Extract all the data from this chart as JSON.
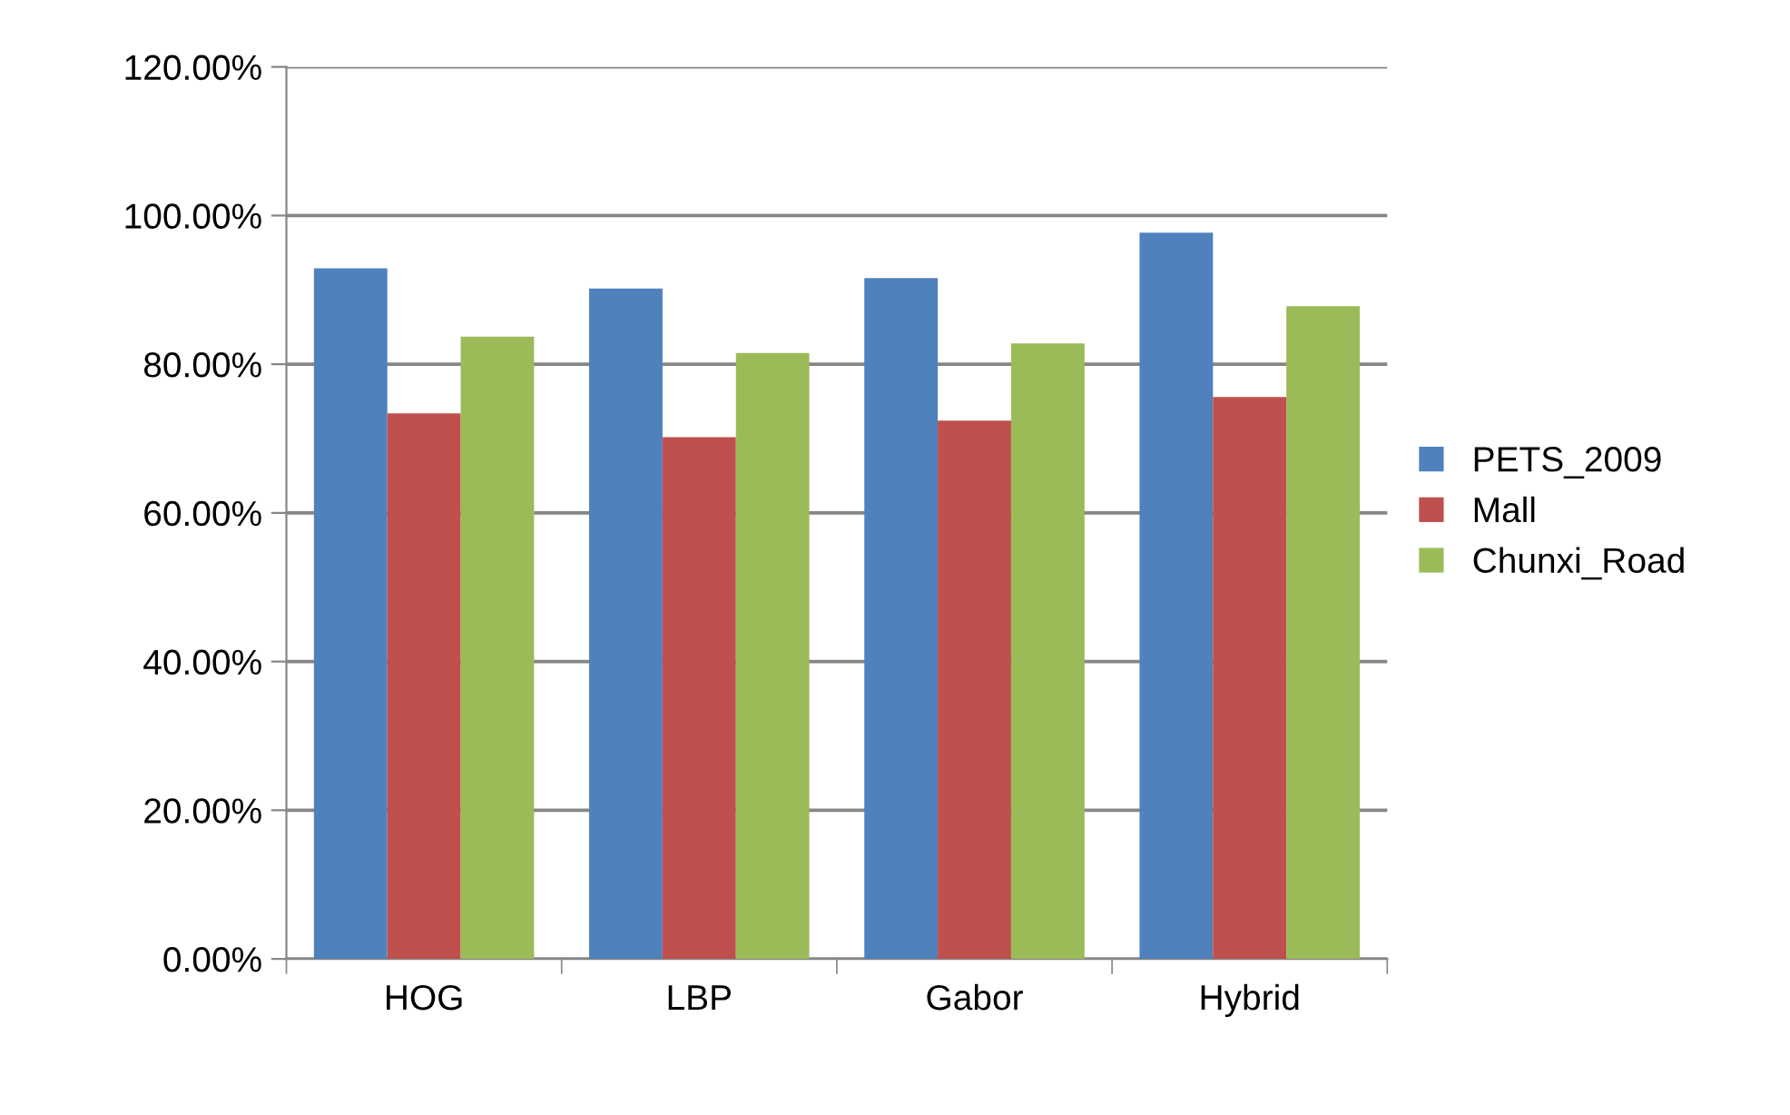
{
  "chart_data": {
    "type": "bar",
    "categories": [
      "HOG",
      "LBP",
      "Gabor",
      "Hybrid"
    ],
    "series": [
      {
        "name": "PETS_2009",
        "color": "#4f81bd",
        "values": [
          92.9,
          90.2,
          91.6,
          97.7
        ]
      },
      {
        "name": "Mall",
        "color": "#c0504d",
        "values": [
          73.4,
          70.2,
          72.4,
          75.6
        ]
      },
      {
        "name": "Chunxi_Road",
        "color": "#9bbb59",
        "values": [
          83.7,
          81.5,
          82.8,
          87.8
        ]
      }
    ],
    "ylim": [
      0,
      120
    ],
    "yticks": [
      {
        "value": 0,
        "label": "0.00%"
      },
      {
        "value": 20,
        "label": "20.00%"
      },
      {
        "value": 40,
        "label": "40.00%"
      },
      {
        "value": 60,
        "label": "60.00%"
      },
      {
        "value": 80,
        "label": "80.00%"
      },
      {
        "value": 100,
        "label": "100.00%"
      },
      {
        "value": 120,
        "label": "120.00%"
      }
    ],
    "grid": "y",
    "legend": "right"
  }
}
